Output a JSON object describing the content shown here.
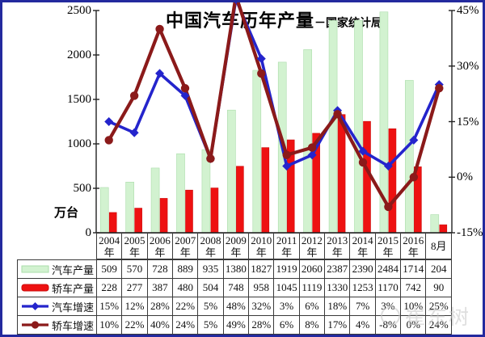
{
  "watermark": "崔东树",
  "chart_data": {
    "type": "combo",
    "title": "中国汽车历年产量",
    "subtitle": "－国家统计局",
    "unit_label": "万台",
    "grid": false,
    "legend_position": "table-left",
    "categories": [
      "2004年",
      "2005年",
      "2006年",
      "2007年",
      "2008年",
      "2009年",
      "2010年",
      "2011年",
      "2012年",
      "2013年",
      "2014年",
      "2015年",
      "2016年",
      "8月"
    ],
    "left_axis": {
      "min": 0,
      "max": 2500,
      "step": 500,
      "ticks": [
        "2500",
        "2000",
        "1500",
        "1000",
        "500",
        "0"
      ]
    },
    "right_axis": {
      "min": -15,
      "max": 45,
      "step": 15,
      "ticks": [
        "45%",
        "30%",
        "15%",
        "0%",
        "-15%"
      ]
    },
    "series": [
      {
        "name": "汽车产量",
        "type": "bar",
        "axis": "left",
        "color": "#d2f2d0",
        "edge": "#aadcaa",
        "values": [
          509,
          570,
          728,
          889,
          935,
          1380,
          1827,
          1919,
          2060,
          2387,
          2390,
          2484,
          1714,
          204
        ]
      },
      {
        "name": "轿车产量",
        "type": "bar",
        "axis": "left",
        "color": "#ee1111",
        "edge": "#cc0e0e",
        "values": [
          228,
          277,
          387,
          480,
          504,
          748,
          958,
          1045,
          1119,
          1330,
          1253,
          1170,
          742,
          90
        ]
      },
      {
        "name": "汽车增速",
        "type": "line",
        "axis": "right",
        "color": "#2424cc",
        "marker": "diamond",
        "values": [
          15,
          12,
          28,
          22,
          5,
          48,
          32,
          3,
          6,
          18,
          7,
          3,
          10,
          25
        ]
      },
      {
        "name": "轿车增速",
        "type": "line",
        "axis": "right",
        "color": "#8b1a1a",
        "marker": "circle",
        "values": [
          10,
          22,
          40,
          24,
          5,
          49,
          28,
          6,
          8,
          17,
          4,
          -8,
          0,
          24
        ]
      }
    ]
  }
}
